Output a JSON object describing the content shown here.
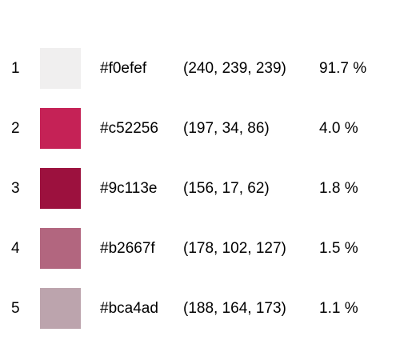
{
  "palette": {
    "items": [
      {
        "index": "1",
        "color": "#f0efef",
        "hex": "#f0efef",
        "rgb": "(240, 239, 239)",
        "percent": "91.7 %"
      },
      {
        "index": "2",
        "color": "#c52256",
        "hex": "#c52256",
        "rgb": "(197, 34, 86)",
        "percent": "4.0 %"
      },
      {
        "index": "3",
        "color": "#9c113e",
        "hex": "#9c113e",
        "rgb": "(156, 17, 62)",
        "percent": "1.8 %"
      },
      {
        "index": "4",
        "color": "#b2667f",
        "hex": "#b2667f",
        "rgb": "(178, 102, 127)",
        "percent": "1.5 %"
      },
      {
        "index": "5",
        "color": "#bca4ad",
        "hex": "#bca4ad",
        "rgb": "(188, 164, 173)",
        "percent": "1.1 %"
      }
    ]
  }
}
